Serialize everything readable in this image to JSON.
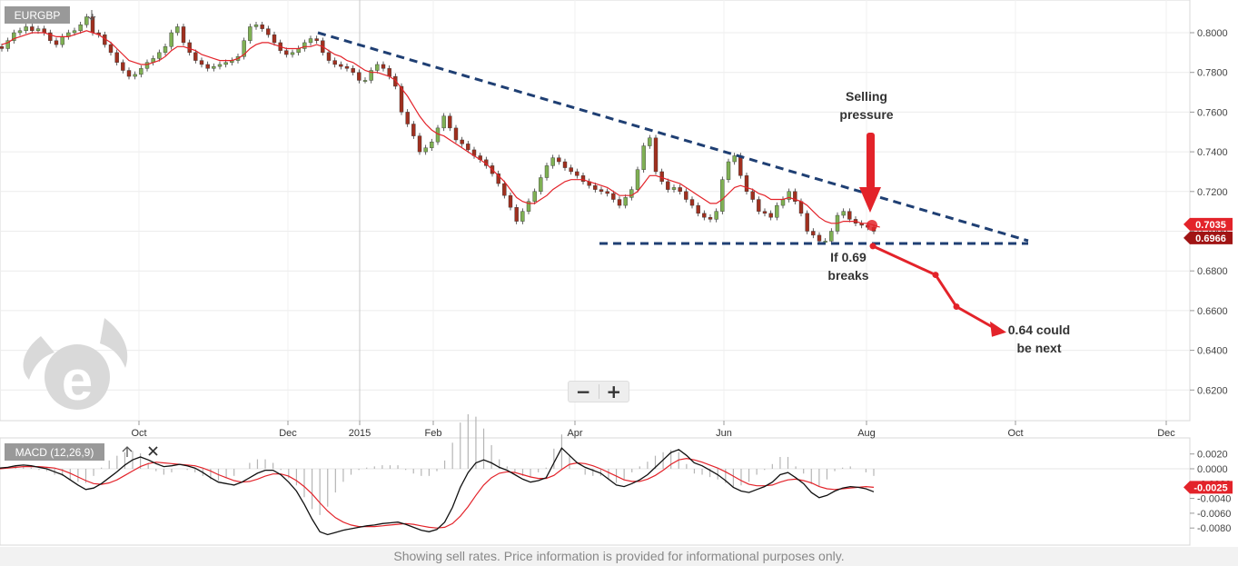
{
  "chart_data": [
    {
      "type": "line",
      "panel": "price",
      "symbol": "EURGBP",
      "ylim": [
        0.6,
        0.81
      ],
      "y_ticks": [
        "0.6200",
        "0.6400",
        "0.6600",
        "0.6800",
        "0.7000",
        "0.7200",
        "0.7400",
        "0.7600",
        "0.7800",
        "0.8000"
      ],
      "x_ticks": [
        "Oct",
        "Dec",
        "2015",
        "Feb",
        "Apr",
        "Jun",
        "Aug",
        "Oct",
        "Dec"
      ],
      "grid": true,
      "series": [
        {
          "values": [
            0.792,
            0.796,
            0.8,
            0.801,
            0.803,
            0.801,
            0.802,
            0.8,
            0.796,
            0.794,
            0.798,
            0.8,
            0.801,
            0.804,
            0.808,
            0.8,
            0.799,
            0.794,
            0.79,
            0.785,
            0.781,
            0.778,
            0.779,
            0.782,
            0.785,
            0.787,
            0.79,
            0.793,
            0.8,
            0.803,
            0.795,
            0.79,
            0.786,
            0.784,
            0.782,
            0.783,
            0.784,
            0.785,
            0.786,
            0.788,
            0.796,
            0.803,
            0.804,
            0.802,
            0.799,
            0.795,
            0.791,
            0.789,
            0.79,
            0.792,
            0.795,
            0.797,
            0.796,
            0.79,
            0.786,
            0.784,
            0.783,
            0.782,
            0.78,
            0.776,
            0.776,
            0.781,
            0.784,
            0.782,
            0.778,
            0.773,
            0.76,
            0.754,
            0.748,
            0.74,
            0.742,
            0.745,
            0.752,
            0.758,
            0.752,
            0.746,
            0.744,
            0.741,
            0.738,
            0.736,
            0.733,
            0.729,
            0.724,
            0.718,
            0.712,
            0.705,
            0.71,
            0.715,
            0.72,
            0.727,
            0.733,
            0.737,
            0.735,
            0.732,
            0.73,
            0.728,
            0.725,
            0.723,
            0.721,
            0.72,
            0.719,
            0.716,
            0.713,
            0.717,
            0.721,
            0.731,
            0.743,
            0.747,
            0.73,
            0.725,
            0.721,
            0.722,
            0.72,
            0.716,
            0.713,
            0.709,
            0.707,
            0.706,
            0.71,
            0.726,
            0.735,
            0.738,
            0.728,
            0.72,
            0.716,
            0.71,
            0.709,
            0.707,
            0.713,
            0.716,
            0.72,
            0.715,
            0.709,
            0.7,
            0.698,
            0.695,
            0.695,
            0.7,
            0.708,
            0.71,
            0.706,
            0.704,
            0.703,
            0.702,
            0.7
          ],
          "color": "#222222"
        },
        {
          "values": [
            0.794,
            0.795,
            0.797,
            0.798,
            0.799,
            0.8,
            0.8,
            0.8,
            0.799,
            0.798,
            0.798,
            0.798,
            0.799,
            0.8,
            0.801,
            0.8,
            0.799,
            0.797,
            0.795,
            0.792,
            0.789,
            0.786,
            0.785,
            0.784,
            0.784,
            0.785,
            0.786,
            0.788,
            0.791,
            0.793,
            0.793,
            0.792,
            0.791,
            0.789,
            0.788,
            0.787,
            0.786,
            0.786,
            0.786,
            0.787,
            0.789,
            0.792,
            0.794,
            0.795,
            0.795,
            0.794,
            0.793,
            0.792,
            0.792,
            0.792,
            0.793,
            0.793,
            0.794,
            0.793,
            0.791,
            0.789,
            0.788,
            0.786,
            0.785,
            0.783,
            0.781,
            0.78,
            0.78,
            0.779,
            0.778,
            0.776,
            0.772,
            0.768,
            0.763,
            0.758,
            0.754,
            0.751,
            0.749,
            0.748,
            0.746,
            0.744,
            0.742,
            0.74,
            0.738,
            0.736,
            0.734,
            0.731,
            0.728,
            0.725,
            0.721,
            0.717,
            0.715,
            0.714,
            0.714,
            0.716,
            0.718,
            0.721,
            0.723,
            0.725,
            0.726,
            0.726,
            0.726,
            0.725,
            0.724,
            0.723,
            0.722,
            0.72,
            0.718,
            0.718,
            0.718,
            0.72,
            0.724,
            0.728,
            0.728,
            0.727,
            0.726,
            0.725,
            0.724,
            0.722,
            0.72,
            0.718,
            0.716,
            0.714,
            0.714,
            0.716,
            0.719,
            0.722,
            0.723,
            0.722,
            0.721,
            0.719,
            0.718,
            0.716,
            0.716,
            0.716,
            0.717,
            0.716,
            0.715,
            0.713,
            0.71,
            0.707,
            0.705,
            0.704,
            0.704,
            0.705,
            0.705,
            0.705,
            0.704,
            0.704,
            0.703,
            0.702
          ],
          "color": "#e3232a"
        }
      ],
      "price_labels": [
        "0.7035",
        "0.6966"
      ],
      "trendline_color": "#1f3f73",
      "projection_points": [
        0.6925,
        0.678,
        0.662,
        0.65
      ],
      "annotations": {
        "selling_pressure": [
          "Selling",
          "pressure"
        ],
        "breaks": [
          "If 0.69",
          "breaks"
        ],
        "target": [
          "0.64 could",
          "be next"
        ]
      }
    },
    {
      "type": "line",
      "panel": "macd",
      "name": "MACD (12,26,9)",
      "ylim": [
        -0.0095,
        0.0028
      ],
      "y_ticks": [
        "0.0020",
        "0.0000",
        "-0.0020",
        "-0.0040",
        "-0.0060",
        "-0.0080"
      ],
      "series": [
        {
          "values": [
            0.0001,
            0.0002,
            0.0004,
            0.0005,
            0.0004,
            0.0002,
            0.0,
            -0.0004,
            -0.0008,
            -0.0015,
            -0.0022,
            -0.0028,
            -0.0026,
            -0.002,
            -0.0012,
            -0.0004,
            0.0005,
            0.0012,
            0.0016,
            0.0012,
            0.0007,
            0.0003,
            0.0004,
            0.0006,
            0.0004,
            0.0001,
            -0.0005,
            -0.0012,
            -0.0018,
            -0.002,
            -0.0022,
            -0.0018,
            -0.0012,
            -0.0006,
            -0.0002,
            -0.0002,
            -0.0008,
            -0.0018,
            -0.003,
            -0.0048,
            -0.0068,
            -0.0085,
            -0.0089,
            -0.0086,
            -0.0083,
            -0.0081,
            -0.0079,
            -0.0077,
            -0.0076,
            -0.0074,
            -0.0073,
            -0.0072,
            -0.0075,
            -0.0079,
            -0.0083,
            -0.0085,
            -0.0082,
            -0.0072,
            -0.0052,
            -0.0025,
            -0.0005,
            0.0008,
            0.0012,
            0.0008,
            0.0002,
            -0.0002,
            -0.0008,
            -0.0014,
            -0.0018,
            -0.0016,
            -0.0012,
            0.0008,
            0.0028,
            0.0018,
            0.0008,
            0.0002,
            -0.0002,
            -0.0006,
            -0.0014,
            -0.0022,
            -0.0024,
            -0.002,
            -0.0015,
            -0.0008,
            0.0002,
            0.0012,
            0.0022,
            0.0026,
            0.0018,
            0.0008,
            0.0004,
            -0.0002,
            -0.0008,
            -0.0016,
            -0.0025,
            -0.003,
            -0.0032,
            -0.0028,
            -0.0024,
            -0.0018,
            -0.0008,
            -0.0005,
            -0.0012,
            -0.002,
            -0.0032,
            -0.0039,
            -0.0036,
            -0.003,
            -0.0026,
            -0.0024,
            -0.0025,
            -0.0027,
            -0.0031
          ],
          "color": "#111111"
        },
        {
          "values": [
            0.0,
            0.0001,
            0.0002,
            0.0003,
            0.0003,
            0.0003,
            0.0002,
            0.0001,
            -0.0002,
            -0.0006,
            -0.0011,
            -0.0016,
            -0.002,
            -0.0021,
            -0.0019,
            -0.0015,
            -0.0009,
            -0.0003,
            0.0003,
            0.0007,
            0.0009,
            0.0008,
            0.0007,
            0.0006,
            0.0005,
            0.0004,
            0.0001,
            -0.0003,
            -0.0008,
            -0.0012,
            -0.0016,
            -0.0018,
            -0.0017,
            -0.0014,
            -0.001,
            -0.0007,
            -0.0007,
            -0.001,
            -0.0016,
            -0.0024,
            -0.0034,
            -0.0046,
            -0.0057,
            -0.0066,
            -0.0072,
            -0.0076,
            -0.0078,
            -0.0078,
            -0.0078,
            -0.0077,
            -0.0076,
            -0.0075,
            -0.0074,
            -0.0075,
            -0.0077,
            -0.0079,
            -0.008,
            -0.0079,
            -0.0074,
            -0.0064,
            -0.0051,
            -0.0036,
            -0.0022,
            -0.0012,
            -0.0006,
            -0.0004,
            -0.0005,
            -0.0008,
            -0.0011,
            -0.0013,
            -0.0013,
            -0.0009,
            -0.0001,
            0.0006,
            0.0008,
            0.0007,
            0.0004,
            0.0,
            -0.0005,
            -0.001,
            -0.0015,
            -0.0017,
            -0.0017,
            -0.0014,
            -0.0009,
            -0.0002,
            0.0006,
            0.0012,
            0.0014,
            0.0012,
            0.0009,
            0.0005,
            0.0001,
            -0.0004,
            -0.001,
            -0.0016,
            -0.0021,
            -0.0023,
            -0.0023,
            -0.0022,
            -0.0018,
            -0.0015,
            -0.0014,
            -0.0016,
            -0.0019,
            -0.0024,
            -0.0027,
            -0.0028,
            -0.0027,
            -0.0026,
            -0.0025,
            -0.0024,
            -0.0025
          ],
          "color": "#e3232a"
        }
      ],
      "value_label": "-0.0025"
    }
  ],
  "footer_text": "Showing sell rates. Price information is provided for informational purposes only.",
  "zoom": {
    "minus": "−",
    "plus": "+"
  },
  "icons": {
    "arrow_up": "arrow-up-icon",
    "close": "close-icon",
    "arrow_down": "arrow-down-icon"
  },
  "colors": {
    "price_up": "#7fb054",
    "price_down": "#a0301f",
    "label_red": "#e3232a",
    "label_dark": "#a01414",
    "symbol_bg": "#999999"
  }
}
